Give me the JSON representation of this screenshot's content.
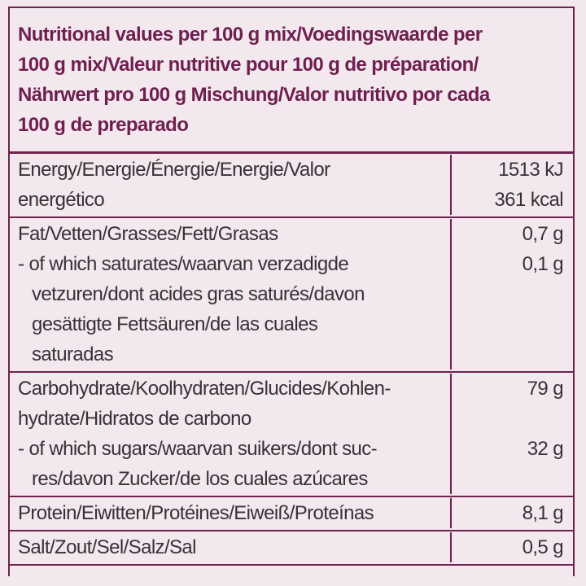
{
  "header": {
    "lines": [
      "Nutritional values per 100 g mix/Voedingswaarde per",
      "100 g mix/Valeur nutritive pour 100 g de préparation/",
      "Nährwert pro 100 g Mischung/Valor nutritivo por cada",
      "100 g de preparado"
    ]
  },
  "table": {
    "rows": [
      {
        "items": [
          {
            "label": [
              "Energy/Energie/Énergie/Energie/Valor",
              "energético"
            ],
            "value": [
              "1513 kJ",
              "361 kcal"
            ]
          }
        ]
      },
      {
        "items": [
          {
            "label": [
              "Fat/Vetten/Grasses/Fett/Grasas"
            ],
            "value": [
              "0,7 g"
            ]
          },
          {
            "label": [
              "- of which saturates/waarvan verzadigde",
              "vetzuren/dont acides gras saturés/davon",
              "gesättigte Fettsäuren/de las cuales",
              "saturadas"
            ],
            "value": [
              "0,1 g"
            ]
          }
        ]
      },
      {
        "items": [
          {
            "label": [
              "Carbohydrate/Koolhydraten/Glucides/Kohlen-",
              "hydrate/Hidratos de carbono"
            ],
            "value": [
              "79 g"
            ]
          },
          {
            "label": [
              "- of which sugars/waarvan suikers/dont suc-",
              "res/davon Zucker/de los cuales azúcares"
            ],
            "value": [
              "32 g"
            ]
          }
        ]
      },
      {
        "items": [
          {
            "label": [
              "Protein/Eiwitten/Protéines/Eiweiß/Proteínas"
            ],
            "value": [
              "8,1 g"
            ]
          }
        ]
      },
      {
        "items": [
          {
            "label": [
              "Salt/Zout/Sel/Salz/Sal"
            ],
            "value": [
              "0,5 g"
            ]
          }
        ]
      }
    ]
  }
}
